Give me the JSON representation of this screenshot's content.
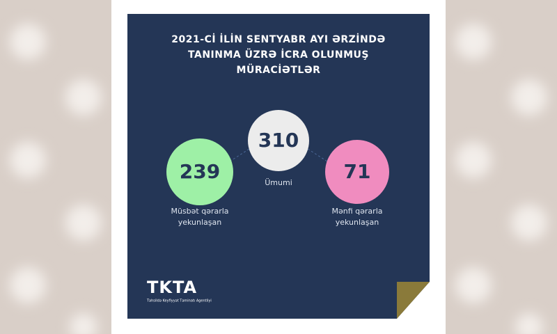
{
  "title": [
    "2021-Cİ İLİN SENTYABR AYI ƏRZİNDƏ",
    "TANINMA ÜZRƏ İCRA OLUNMUŞ",
    "MÜRACİƏTLƏR"
  ],
  "stats": [
    {
      "value": 310,
      "label": [
        "Ümumi"
      ]
    },
    {
      "value": 239,
      "label": [
        "Müsbət qərarla",
        "yekunlaşan"
      ]
    },
    {
      "value": 71,
      "label": [
        "Mənfi qərarla",
        "yekunlaşan"
      ]
    }
  ],
  "logo": {
    "name": "TKTA",
    "subtitle": "Təhsildə Keyfiyyət Təminatı Agentliyi"
  }
}
